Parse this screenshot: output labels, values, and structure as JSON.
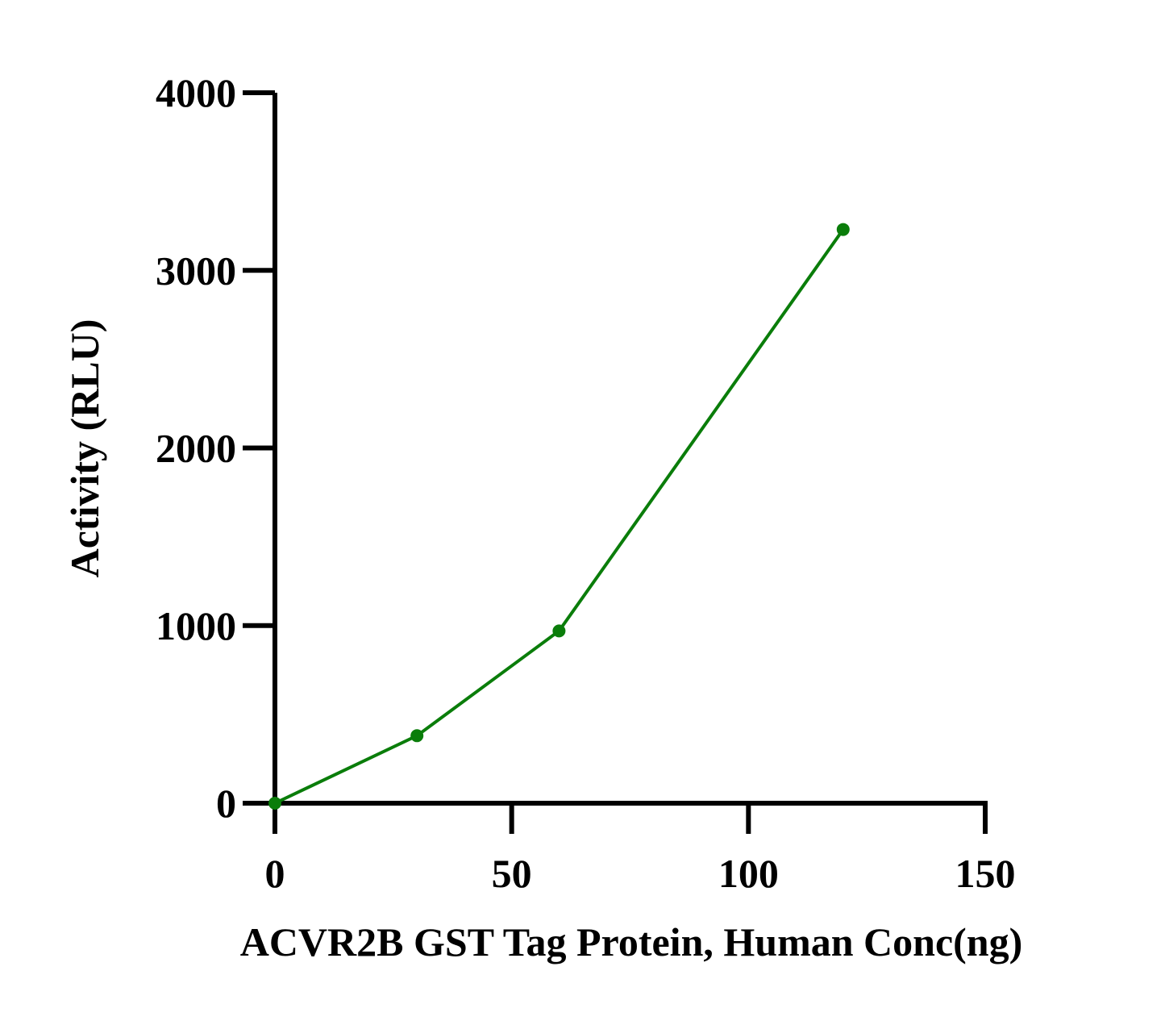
{
  "chart_data": {
    "type": "line",
    "x_label": "ACVR2B GST Tag Protein, Human Conc(ng)",
    "y_label": "Activity (RLU)",
    "x": [
      0,
      30,
      60,
      120
    ],
    "series": [
      {
        "color": "#0a7d0a",
        "values": [
          0,
          380,
          970,
          3230
        ]
      }
    ],
    "xlim": [
      0,
      150
    ],
    "xticks": [
      0,
      50,
      100,
      150
    ],
    "ylim": [
      0,
      4000
    ],
    "yticks": [
      0,
      1000,
      2000,
      3000,
      4000
    ],
    "grid": false
  }
}
